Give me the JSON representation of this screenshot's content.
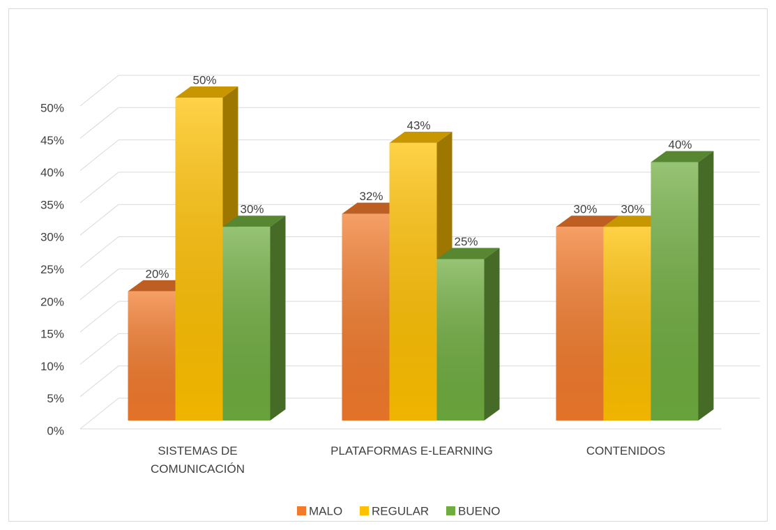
{
  "chart_data": {
    "type": "bar3d",
    "categories": [
      "SISTEMAS DE\nCOMUNICACIÓN",
      "PLATAFORMAS E-LEARNING",
      "CONTENIDOS"
    ],
    "series": [
      {
        "name": "MALO",
        "color": "#f27a2b",
        "values": [
          20,
          32,
          30
        ],
        "value_labels": [
          "20%",
          "32%",
          "30%"
        ]
      },
      {
        "name": "REGULAR",
        "color": "#ffc000",
        "values": [
          50,
          43,
          30
        ],
        "value_labels": [
          "50%",
          "43%",
          "30%"
        ]
      },
      {
        "name": "BUENO",
        "color": "#6fad3f",
        "values": [
          30,
          25,
          40
        ],
        "value_labels": [
          "30%",
          "25%",
          "40%"
        ]
      }
    ],
    "ylim": [
      0,
      50
    ],
    "yticks": [
      {
        "value": 0,
        "label": "0%"
      },
      {
        "value": 5,
        "label": "5%"
      },
      {
        "value": 10,
        "label": "10%"
      },
      {
        "value": 15,
        "label": "15%"
      },
      {
        "value": 20,
        "label": "20%"
      },
      {
        "value": 25,
        "label": "25%"
      },
      {
        "value": 30,
        "label": "30%"
      },
      {
        "value": 35,
        "label": "35%"
      },
      {
        "value": 40,
        "label": "40%"
      },
      {
        "value": 45,
        "label": "45%"
      },
      {
        "value": 50,
        "label": "50%"
      }
    ],
    "grid": true,
    "legend": "bottom"
  }
}
